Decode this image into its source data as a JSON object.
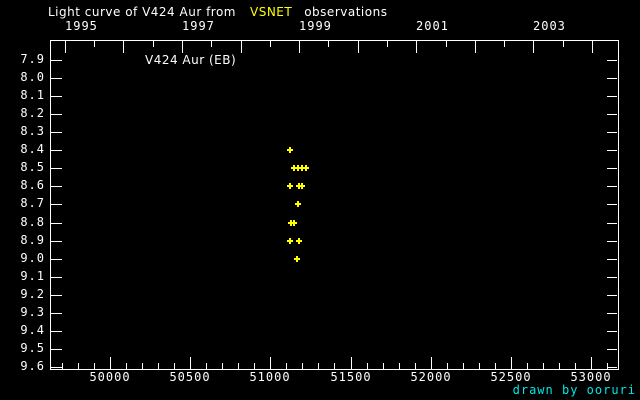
{
  "header": {
    "title_prefix": "Light curve of V424 Aur from",
    "title_highlight": "VSNET",
    "title_suffix": "observations"
  },
  "annotations": {
    "series_label": "V424 Aur (EB)",
    "credit": "drawn by ooruri"
  },
  "colors": {
    "background": "#000000",
    "axis": "#ffffff",
    "marker": "#ffff00",
    "title_highlight": "#ffff00",
    "credit": "#00e6e6"
  },
  "chart_data": {
    "type": "scatter",
    "title": "Light curve of V424 Aur from VSNET observations",
    "title_highlight_word": "VSNET",
    "series_label": "V424 Aur (EB)",
    "marker_style": "plus",
    "marker_color": "#ffff00",
    "x_axis": {
      "lim": [
        49626,
        53168
      ],
      "major_ticks": [
        50000,
        50500,
        51000,
        51500,
        52000,
        52500,
        53000
      ],
      "minor_tick_step": 100,
      "minor_tick_start": 49700,
      "minor_tick_end": 53100
    },
    "y_axis": {
      "lim": [
        7.79,
        9.61
      ],
      "ticks": [
        7.9,
        8.0,
        8.1,
        8.2,
        8.3,
        8.4,
        8.5,
        8.6,
        8.7,
        8.8,
        8.9,
        9.0,
        9.1,
        9.2,
        9.3,
        9.4,
        9.5,
        9.6
      ],
      "direction": "magnitude-increases-downward"
    },
    "top_axis": {
      "unit": "year",
      "year_ticks": [
        {
          "year": 1995,
          "jd": 49718.5
        },
        {
          "year": 1996,
          "jd": 50083.5
        },
        {
          "year": 1997,
          "jd": 50449.5
        },
        {
          "year": 1998,
          "jd": 50814.5
        },
        {
          "year": 1999,
          "jd": 51179.5
        },
        {
          "year": 2000,
          "jd": 51544.5
        },
        {
          "year": 2001,
          "jd": 51910.5
        },
        {
          "year": 2002,
          "jd": 52275.5
        },
        {
          "year": 2003,
          "jd": 52640.5
        },
        {
          "year": 2004,
          "jd": 53005.5
        }
      ],
      "labeled_years": [
        1995,
        1997,
        1999,
        2001,
        2003
      ],
      "half_year_offset_days": 182.6
    },
    "points": [
      {
        "jd": 51120,
        "mag": 8.4
      },
      {
        "jd": 51150,
        "mag": 8.5
      },
      {
        "jd": 51170,
        "mag": 8.5
      },
      {
        "jd": 51200,
        "mag": 8.5
      },
      {
        "jd": 51220,
        "mag": 8.5
      },
      {
        "jd": 51120,
        "mag": 8.6
      },
      {
        "jd": 51177,
        "mag": 8.6
      },
      {
        "jd": 51198,
        "mag": 8.6
      },
      {
        "jd": 51170,
        "mag": 8.7
      },
      {
        "jd": 51126,
        "mag": 8.8
      },
      {
        "jd": 51150,
        "mag": 8.8
      },
      {
        "jd": 51120,
        "mag": 8.9
      },
      {
        "jd": 51181,
        "mag": 8.9
      },
      {
        "jd": 51168,
        "mag": 9.0
      }
    ]
  }
}
